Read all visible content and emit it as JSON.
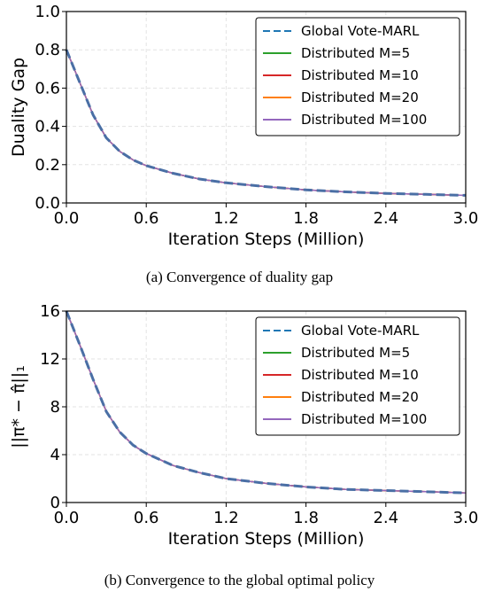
{
  "figure_a": {
    "caption": "(a) Convergence of duality gap"
  },
  "figure_b": {
    "caption": "(b) Convergence to the global optimal policy"
  },
  "chart_data": [
    {
      "type": "line",
      "xlabel": "Iteration Steps (Million)",
      "ylabel": "Duality Gap",
      "xlim": [
        0,
        3.0
      ],
      "ylim": [
        0,
        1.0
      ],
      "x_ticks": [
        "0.0",
        "0.6",
        "1.2",
        "1.8",
        "2.4",
        "3.0"
      ],
      "y_ticks": [
        "0.0",
        "0.2",
        "0.4",
        "0.6",
        "0.8",
        "1.0"
      ],
      "grid": true,
      "legend_position": "top-right",
      "x": [
        0,
        0.1,
        0.2,
        0.3,
        0.4,
        0.5,
        0.6,
        0.8,
        1.0,
        1.2,
        1.5,
        1.8,
        2.1,
        2.4,
        2.7,
        3.0
      ],
      "series": [
        {
          "name": "Global Vote-MARL",
          "color": "#1f77b4",
          "dashed": true,
          "values": [
            0.8,
            0.63,
            0.46,
            0.34,
            0.27,
            0.225,
            0.195,
            0.155,
            0.125,
            0.105,
            0.085,
            0.068,
            0.058,
            0.05,
            0.045,
            0.04
          ]
        },
        {
          "name": "Distributed M=5",
          "color": "#2ca02c",
          "dashed": false,
          "values": [
            0.8,
            0.63,
            0.46,
            0.34,
            0.27,
            0.225,
            0.195,
            0.155,
            0.125,
            0.105,
            0.085,
            0.068,
            0.058,
            0.05,
            0.045,
            0.04
          ]
        },
        {
          "name": "Distributed M=10",
          "color": "#d62728",
          "dashed": false,
          "values": [
            0.8,
            0.63,
            0.46,
            0.34,
            0.27,
            0.225,
            0.195,
            0.155,
            0.125,
            0.105,
            0.085,
            0.068,
            0.058,
            0.05,
            0.045,
            0.04
          ]
        },
        {
          "name": "Distributed M=20",
          "color": "#ff7f0e",
          "dashed": false,
          "values": [
            0.8,
            0.63,
            0.46,
            0.34,
            0.27,
            0.225,
            0.195,
            0.155,
            0.125,
            0.105,
            0.085,
            0.068,
            0.058,
            0.05,
            0.045,
            0.04
          ]
        },
        {
          "name": "Distributed M=100",
          "color": "#9467bd",
          "dashed": false,
          "values": [
            0.8,
            0.63,
            0.46,
            0.34,
            0.27,
            0.225,
            0.195,
            0.155,
            0.125,
            0.105,
            0.085,
            0.068,
            0.058,
            0.05,
            0.045,
            0.04
          ]
        }
      ]
    },
    {
      "type": "line",
      "xlabel": "Iteration Steps (Million)",
      "ylabel": "||π* − π̂||₁",
      "xlim": [
        0,
        3.0
      ],
      "ylim": [
        0,
        16
      ],
      "x_ticks": [
        "0.0",
        "0.6",
        "1.2",
        "1.8",
        "2.4",
        "3.0"
      ],
      "y_ticks": [
        "0",
        "4",
        "8",
        "12",
        "16"
      ],
      "grid": true,
      "legend_position": "top-right",
      "x": [
        0,
        0.1,
        0.2,
        0.3,
        0.4,
        0.5,
        0.6,
        0.8,
        1.0,
        1.2,
        1.5,
        1.8,
        2.1,
        2.4,
        2.7,
        3.0
      ],
      "series": [
        {
          "name": "Global Vote-MARL",
          "color": "#1f77b4",
          "dashed": true,
          "values": [
            16.0,
            13.2,
            10.3,
            7.6,
            5.9,
            4.8,
            4.1,
            3.1,
            2.5,
            2.0,
            1.6,
            1.3,
            1.1,
            1.0,
            0.9,
            0.8
          ]
        },
        {
          "name": "Distributed M=5",
          "color": "#2ca02c",
          "dashed": false,
          "values": [
            16.0,
            13.2,
            10.3,
            7.6,
            5.9,
            4.8,
            4.1,
            3.1,
            2.5,
            2.0,
            1.6,
            1.3,
            1.1,
            1.0,
            0.9,
            0.8
          ]
        },
        {
          "name": "Distributed M=10",
          "color": "#d62728",
          "dashed": false,
          "values": [
            16.0,
            13.2,
            10.3,
            7.6,
            5.9,
            4.8,
            4.1,
            3.1,
            2.5,
            2.0,
            1.6,
            1.3,
            1.1,
            1.0,
            0.9,
            0.8
          ]
        },
        {
          "name": "Distributed M=20",
          "color": "#ff7f0e",
          "dashed": false,
          "values": [
            16.0,
            13.2,
            10.3,
            7.6,
            5.9,
            4.8,
            4.1,
            3.1,
            2.5,
            2.0,
            1.6,
            1.3,
            1.1,
            1.0,
            0.9,
            0.8
          ]
        },
        {
          "name": "Distributed M=100",
          "color": "#9467bd",
          "dashed": false,
          "values": [
            16.0,
            13.2,
            10.3,
            7.6,
            5.9,
            4.8,
            4.1,
            3.1,
            2.5,
            2.0,
            1.6,
            1.3,
            1.1,
            1.0,
            0.9,
            0.8
          ]
        }
      ]
    }
  ]
}
